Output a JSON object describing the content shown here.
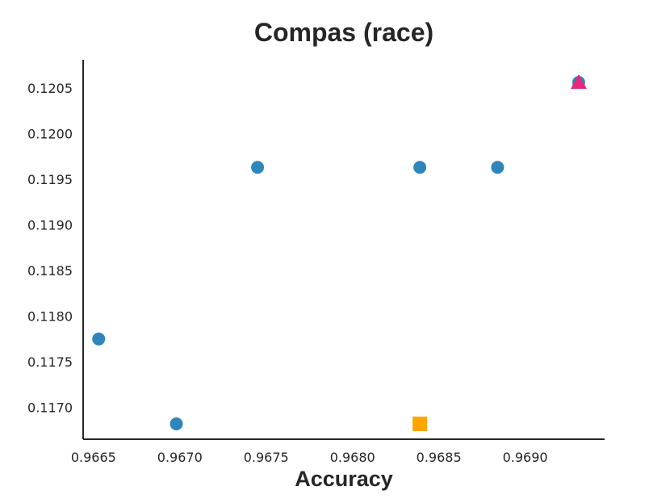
{
  "chart_data": {
    "type": "scatter",
    "title": "Compas (race)",
    "xlabel": "Accuracy",
    "ylabel": "",
    "xlim": [
      0.96644,
      0.96946
    ],
    "ylim": [
      0.116652,
      0.120808
    ],
    "x_ticks": [
      "0.9665",
      "0.9670",
      "0.9675",
      "0.9680",
      "0.9685",
      "0.9690"
    ],
    "x_tick_values": [
      0.9665,
      0.967,
      0.9675,
      0.968,
      0.9685,
      0.969
    ],
    "y_ticks": [
      "0.1170",
      "0.1175",
      "0.1180",
      "0.1185",
      "0.1190",
      "0.1195",
      "0.1200",
      "0.1205"
    ],
    "y_tick_values": [
      0.117,
      0.1175,
      0.118,
      0.1185,
      0.119,
      0.1195,
      0.12,
      0.1205
    ],
    "grid": false,
    "legend": "none",
    "series": [
      {
        "marker": "circle",
        "color": "#2e86bb",
        "points": [
          {
            "x": 0.96653,
            "y": 0.11775
          },
          {
            "x": 0.96698,
            "y": 0.11682
          },
          {
            "x": 0.96745,
            "y": 0.11963
          },
          {
            "x": 0.96839,
            "y": 0.11963
          },
          {
            "x": 0.96884,
            "y": 0.11963
          },
          {
            "x": 0.96931,
            "y": 0.12056
          }
        ]
      },
      {
        "marker": "square",
        "color": "#ffa500",
        "points": [
          {
            "x": 0.96839,
            "y": 0.11682
          }
        ]
      },
      {
        "marker": "triangle",
        "color": "#e6287f",
        "points": [
          {
            "x": 0.96931,
            "y": 0.12056
          }
        ]
      }
    ]
  }
}
